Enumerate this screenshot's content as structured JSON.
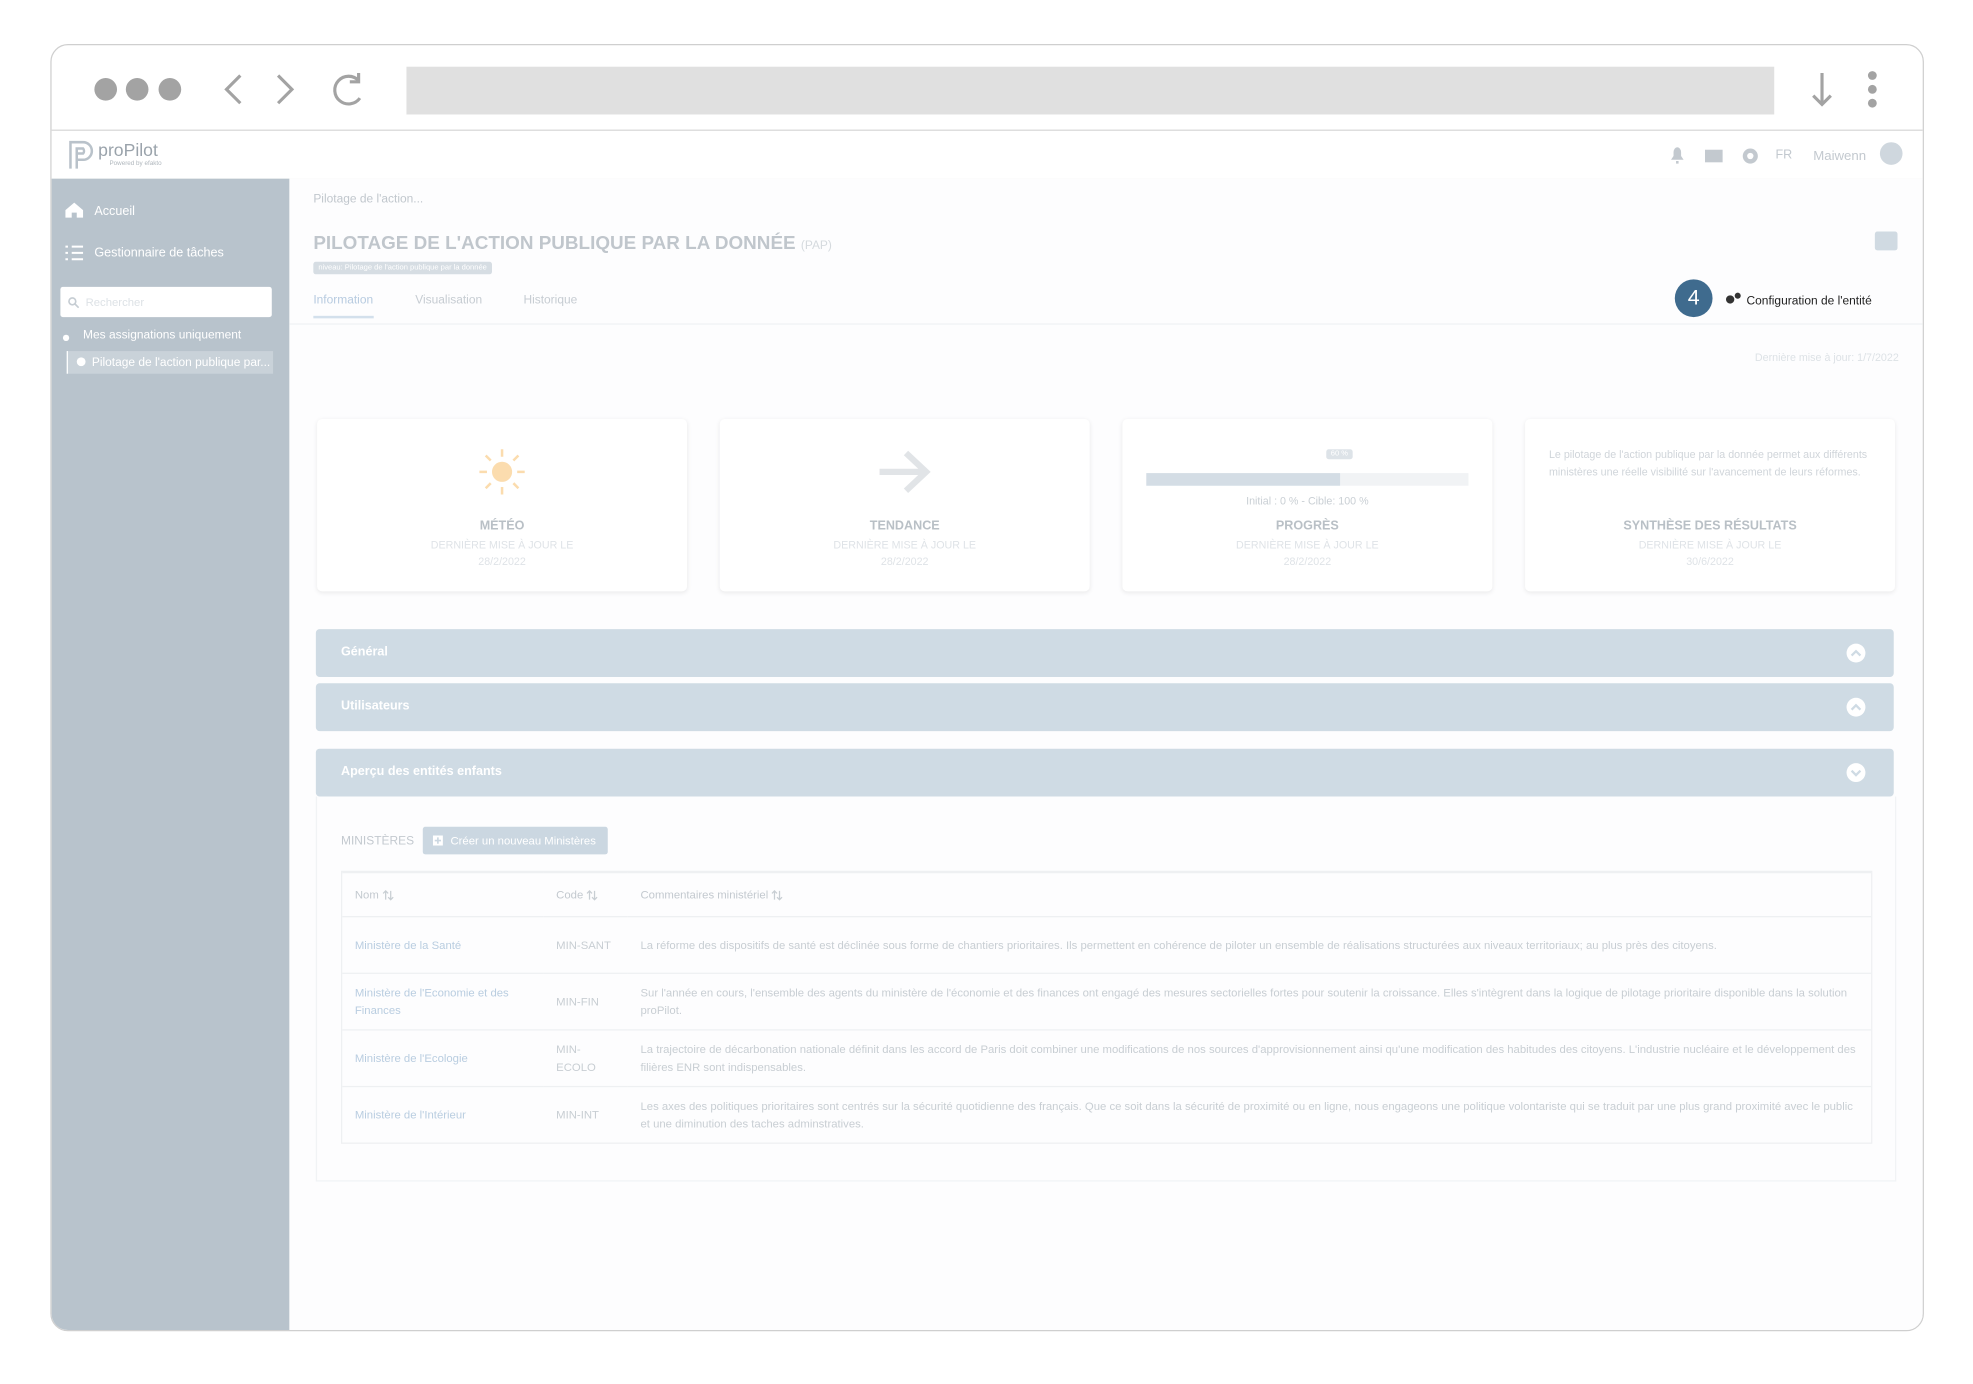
{
  "app": {
    "logo": "proPilot",
    "logo_sub": "Powered by efakto",
    "lang": "FR",
    "user": "Maiwenn"
  },
  "sidebar": {
    "nav": [
      "Accueil",
      "Gestionnaire de tâches"
    ],
    "search_placeholder": "Rechercher",
    "filter": "Mes assignations uniquement",
    "tree_item": "Pilotage de l'action publique par..."
  },
  "breadcrumb": "Pilotage de l'action...",
  "header": {
    "title": "PILOTAGE DE L'ACTION PUBLIQUE PAR LA DONNÉE",
    "code": "(PAP)",
    "badge": "niveau: Pilotage de l'action publique par la donnée"
  },
  "tabs": [
    "Information",
    "Visualisation",
    "Historique"
  ],
  "step": "4",
  "config": "Configuration de l'entité",
  "last_update": "Dernière mise à jour: 1/7/2022",
  "cards": [
    {
      "label": "MÉTÉO",
      "sub": "DERNIÈRE MISE À JOUR LE",
      "date": "28/2/2022"
    },
    {
      "label": "TENDANCE",
      "sub": "DERNIÈRE MISE À JOUR LE",
      "date": "28/2/2022"
    },
    {
      "label": "PROGRÈS",
      "sub": "DERNIÈRE MISE À JOUR LE",
      "date": "28/2/2022"
    },
    {
      "label": "SYNTHÈSE DES RÉSULTATS",
      "sub": "DERNIÈRE MISE À JOUR LE",
      "date": "30/6/2022",
      "text": "Le pilotage de l'action publique par la donnée permet aux différents ministères une réelle visibilité sur l'avancement de leurs réformes."
    }
  ],
  "progress": {
    "value": 60,
    "value_label": "60 %",
    "initial": 0,
    "target": 100,
    "text": "Initial : 0 % - Cible: 100 %"
  },
  "sections": [
    "Général",
    "Utilisateurs",
    "Aperçu des entités enfants"
  ],
  "ministeres": {
    "label": "MINISTÈRES",
    "button": "Créer un nouveau Ministères",
    "columns": [
      "Nom",
      "Code",
      "Commentaires ministériel"
    ],
    "rows": [
      [
        "Ministère de la Santé",
        "MIN-SANT",
        "La réforme des dispositifs de santé est déclinée sous forme de chantiers prioritaires. Ils permettent en cohérence de piloter un ensemble de réalisations structurées aux niveaux territoriaux; au plus près des citoyens."
      ],
      [
        "Ministère de l'Economie et des Finances",
        "MIN-FIN",
        "Sur l'année en cours, l'ensemble des agents du ministère de l'économie et des finances ont engagé des mesures sectorielles fortes pour soutenir la croissance. Elles s'intègrent dans la logique de pilotage prioritaire disponible dans la solution proPilot."
      ],
      [
        "Ministère de l'Ecologie",
        "MIN-ECOLO",
        "La trajectoire de décarbonation nationale définit dans les accord de Paris doit combiner une modifications de nos sources d'approvisionnement ainsi qu'une modification des habitudes des citoyens. L'industrie nucléaire et le développement des filières ENR sont indispensables."
      ],
      [
        "Ministère de l'Intérieur",
        "MIN-INT",
        "Les axes des politiques prioritaires sont centrés sur la sécurité quotidienne des français. Que ce soit dans la sécurité de proximité ou en ligne, nous engageons une politique volontariste qui se traduit par une plus grand proximité avec le public et une diminution des taches adminstratives."
      ]
    ]
  }
}
